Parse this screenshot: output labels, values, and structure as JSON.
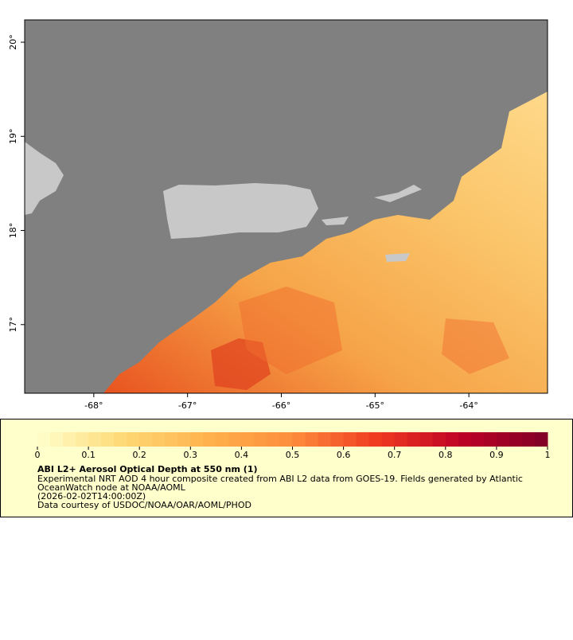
{
  "map": {
    "xlim": [
      -68.737,
      -63.161
    ],
    "ylim": [
      16.271,
      20.237
    ],
    "xticks": [
      {
        "value": -68,
        "label": "-68°"
      },
      {
        "value": -67,
        "label": "-67°"
      },
      {
        "value": -66,
        "label": "-66°"
      },
      {
        "value": -65,
        "label": "-65°"
      },
      {
        "value": -64,
        "label": "-64°"
      }
    ],
    "yticks": [
      {
        "value": 20,
        "label": "20°"
      },
      {
        "value": 19,
        "label": "19°"
      },
      {
        "value": 18,
        "label": "18°"
      },
      {
        "value": 17,
        "label": "17°"
      }
    ]
  },
  "colorbar": {
    "lim": [
      0,
      1
    ],
    "ticks": [
      0,
      0.1,
      0.2,
      0.3,
      0.4,
      0.5,
      0.6,
      0.7,
      0.8,
      0.9,
      1
    ],
    "colors": [
      "#ffffcc",
      "#fed976",
      "#feb24c",
      "#fd8d3c",
      "#f03b20",
      "#bd0026",
      "#800026"
    ]
  },
  "legend": {
    "title": "ABI L2+ Aerosol Optical Depth at 550 nm (1)",
    "lines": [
      "Experimental NRT AOD 4 hour composite created from ABI L2 data from GOES-19. Fields generated by Atlantic",
      "OceanWatch node at NOAA/AOML",
      "(2026-02-02T14:00:00Z)",
      "Data courtesy of USDOC/NOAA/OAR/AOML/PHOD"
    ]
  }
}
